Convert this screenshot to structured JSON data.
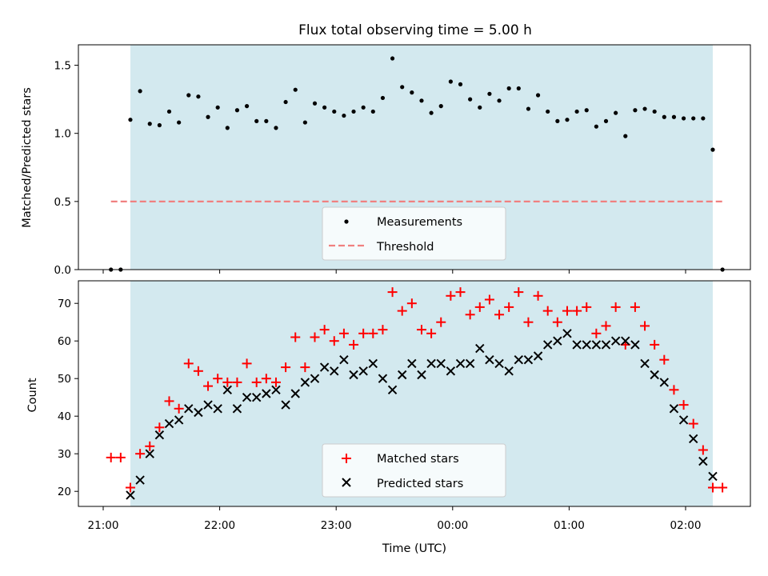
{
  "chart_data": {
    "type": "scatter",
    "title": "Flux total observing time = 5.00 h",
    "xlabel": "Time (UTC)",
    "x_tick_labels": [
      "21:00",
      "22:00",
      "23:00",
      "00:00",
      "01:00",
      "02:00"
    ],
    "observing_window": {
      "start": "21:14",
      "end": "02:14",
      "color": "#d3e9ef"
    },
    "panels": [
      {
        "id": "ratio",
        "ylabel": "Matched/Predicted stars",
        "ylim": [
          0,
          1.65
        ],
        "yticks": [
          "0.0",
          "0.5",
          "1.0",
          "1.5"
        ],
        "threshold": {
          "value": 0.5,
          "label": "Threshold",
          "color": "#f08080"
        },
        "series": [
          {
            "name": "Measurements",
            "marker": "dot",
            "color": "#000000",
            "x": [
              "21:04",
              "21:09",
              "21:14",
              "21:19",
              "21:24",
              "21:29",
              "21:34",
              "21:39",
              "21:44",
              "21:49",
              "21:54",
              "21:59",
              "22:04",
              "22:09",
              "22:14",
              "22:19",
              "22:24",
              "22:29",
              "22:34",
              "22:39",
              "22:44",
              "22:49",
              "22:54",
              "22:59",
              "23:04",
              "23:09",
              "23:14",
              "23:19",
              "23:24",
              "23:29",
              "23:34",
              "23:39",
              "23:44",
              "23:49",
              "23:54",
              "23:59",
              "00:04",
              "00:09",
              "00:14",
              "00:19",
              "00:24",
              "00:29",
              "00:34",
              "00:39",
              "00:44",
              "00:49",
              "00:54",
              "00:59",
              "01:04",
              "01:09",
              "01:14",
              "01:19",
              "01:24",
              "01:29",
              "01:34",
              "01:39",
              "01:44",
              "01:49",
              "01:54",
              "01:59",
              "02:04",
              "02:09",
              "02:14",
              "02:19"
            ],
            "y": [
              0.0,
              0.0,
              1.1,
              1.31,
              1.07,
              1.06,
              1.16,
              1.08,
              1.28,
              1.27,
              1.12,
              1.19,
              1.04,
              1.17,
              1.2,
              1.09,
              1.09,
              1.04,
              1.23,
              1.32,
              1.08,
              1.22,
              1.19,
              1.16,
              1.13,
              1.16,
              1.19,
              1.16,
              1.26,
              1.55,
              1.34,
              1.3,
              1.24,
              1.15,
              1.2,
              1.38,
              1.36,
              1.25,
              1.19,
              1.29,
              1.24,
              1.33,
              1.33,
              1.18,
              1.28,
              1.16,
              1.09,
              1.1,
              1.16,
              1.17,
              1.05,
              1.09,
              1.15,
              0.98,
              1.17,
              1.18,
              1.16,
              1.12,
              1.12,
              1.11,
              1.11,
              1.11,
              0.88,
              0.0
            ]
          }
        ],
        "legend": {
          "position": "lower center",
          "entries": [
            "Measurements",
            "Threshold"
          ]
        }
      },
      {
        "id": "count",
        "ylabel": "Count",
        "ylim": [
          16,
          76
        ],
        "yticks": [
          "20",
          "30",
          "40",
          "50",
          "60",
          "70"
        ],
        "series": [
          {
            "name": "Matched stars",
            "marker": "plus",
            "color": "#ff0000",
            "x": [
              "21:04",
              "21:09",
              "21:14",
              "21:19",
              "21:24",
              "21:29",
              "21:34",
              "21:39",
              "21:44",
              "21:49",
              "21:54",
              "21:59",
              "22:04",
              "22:09",
              "22:14",
              "22:19",
              "22:24",
              "22:29",
              "22:34",
              "22:39",
              "22:44",
              "22:49",
              "22:54",
              "22:59",
              "23:04",
              "23:09",
              "23:14",
              "23:19",
              "23:24",
              "23:29",
              "23:34",
              "23:39",
              "23:44",
              "23:49",
              "23:54",
              "23:59",
              "00:04",
              "00:09",
              "00:14",
              "00:19",
              "00:24",
              "00:29",
              "00:34",
              "00:39",
              "00:44",
              "00:49",
              "00:54",
              "00:59",
              "01:04",
              "01:09",
              "01:14",
              "01:19",
              "01:24",
              "01:29",
              "01:34",
              "01:39",
              "01:44",
              "01:49",
              "01:54",
              "01:59",
              "02:04",
              "02:09",
              "02:14",
              "02:19"
            ],
            "y": [
              29,
              29,
              21,
              30,
              32,
              37,
              44,
              42,
              54,
              52,
              48,
              50,
              49,
              49,
              54,
              49,
              50,
              49,
              53,
              61,
              53,
              61,
              63,
              60,
              62,
              59,
              62,
              62,
              63,
              73,
              68,
              70,
              63,
              62,
              65,
              72,
              73,
              67,
              69,
              71,
              67,
              69,
              73,
              65,
              72,
              68,
              65,
              68,
              68,
              69,
              62,
              64,
              69,
              59,
              69,
              64,
              59,
              55,
              47,
              43,
              38,
              31,
              21,
              21
            ]
          },
          {
            "name": "Predicted stars",
            "marker": "x",
            "color": "#000000",
            "x": [
              "21:14",
              "21:19",
              "21:24",
              "21:29",
              "21:34",
              "21:39",
              "21:44",
              "21:49",
              "21:54",
              "21:59",
              "22:04",
              "22:09",
              "22:14",
              "22:19",
              "22:24",
              "22:29",
              "22:34",
              "22:39",
              "22:44",
              "22:49",
              "22:54",
              "22:59",
              "23:04",
              "23:09",
              "23:14",
              "23:19",
              "23:24",
              "23:29",
              "23:34",
              "23:39",
              "23:44",
              "23:49",
              "23:54",
              "23:59",
              "00:04",
              "00:09",
              "00:14",
              "00:19",
              "00:24",
              "00:29",
              "00:34",
              "00:39",
              "00:44",
              "00:49",
              "00:54",
              "00:59",
              "01:04",
              "01:09",
              "01:14",
              "01:19",
              "01:24",
              "01:29",
              "01:34",
              "01:39",
              "01:44",
              "01:49",
              "01:54",
              "01:59",
              "02:04",
              "02:09",
              "02:14"
            ],
            "y": [
              19,
              23,
              30,
              35,
              38,
              39,
              42,
              41,
              43,
              42,
              47,
              42,
              45,
              45,
              46,
              47,
              43,
              46,
              49,
              50,
              53,
              52,
              55,
              51,
              52,
              54,
              50,
              47,
              51,
              54,
              51,
              54,
              54,
              52,
              54,
              54,
              58,
              55,
              54,
              52,
              55,
              55,
              56,
              59,
              60,
              62,
              59,
              59,
              59,
              59,
              60,
              60,
              59,
              54,
              51,
              49,
              42,
              39,
              34,
              28,
              24
            ]
          }
        ],
        "legend": {
          "position": "lower center",
          "entries": [
            "Matched stars",
            "Predicted stars"
          ]
        }
      }
    ],
    "grid": false
  }
}
